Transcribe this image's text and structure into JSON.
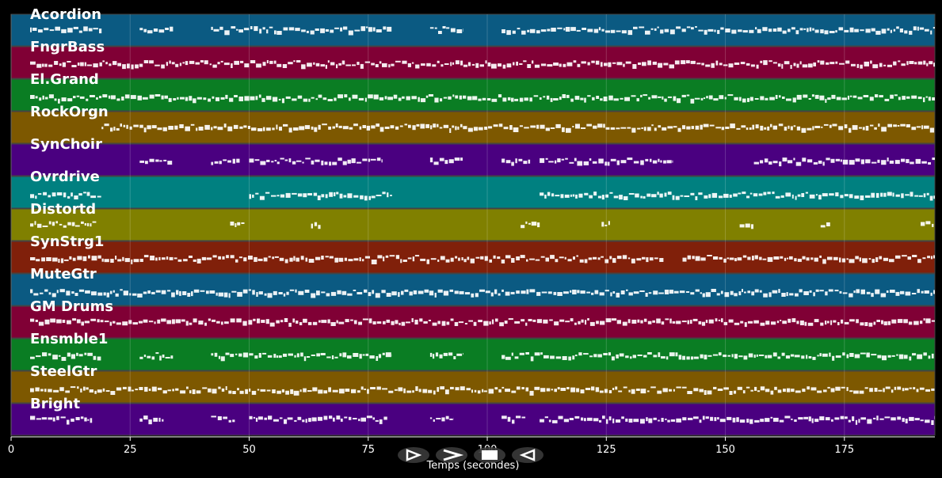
{
  "chart_data": {
    "type": "piano-roll",
    "xlabel": "Temps (secondes)",
    "xlim": [
      0,
      194
    ],
    "x_ticks": [
      "0",
      "25",
      "50",
      "75",
      "100",
      "125",
      "150",
      "175"
    ],
    "tracks": [
      {
        "name": "Acordion",
        "color": "#0b5a82",
        "segments": [
          [
            4,
            19
          ],
          [
            27,
            34
          ],
          [
            42,
            80
          ],
          [
            88,
            95
          ],
          [
            103,
            194
          ]
        ]
      },
      {
        "name": "FngrBass",
        "color": "#800035",
        "segments": [
          [
            4,
            194
          ]
        ]
      },
      {
        "name": "El.Grand",
        "color": "#0a7d23",
        "segments": [
          [
            4,
            194
          ]
        ]
      },
      {
        "name": "RockOrgn",
        "color": "#7d5800",
        "segments": [
          [
            19,
            194
          ]
        ]
      },
      {
        "name": "SynChoir",
        "color": "#4a0080",
        "segments": [
          [
            27,
            34
          ],
          [
            42,
            48
          ],
          [
            50,
            78
          ],
          [
            88,
            95
          ],
          [
            103,
            109
          ],
          [
            111,
            139
          ],
          [
            156,
            194
          ]
        ]
      },
      {
        "name": "Ovrdrive",
        "color": "#008080",
        "segments": [
          [
            4,
            19
          ],
          [
            50,
            80
          ],
          [
            111,
            194
          ]
        ]
      },
      {
        "name": "Distortd",
        "color": "#808000",
        "segments": [
          [
            4,
            18
          ],
          [
            46,
            49
          ],
          [
            63,
            65
          ],
          [
            107,
            111
          ],
          [
            124,
            126
          ],
          [
            153,
            156
          ],
          [
            170,
            172
          ],
          [
            191,
            194
          ]
        ]
      },
      {
        "name": "SynStrg1",
        "color": "#80200a",
        "segments": [
          [
            4,
            137
          ],
          [
            141,
            194
          ]
        ]
      },
      {
        "name": "MuteGtr",
        "color": "#0b5a82",
        "segments": [
          [
            4,
            194
          ]
        ]
      },
      {
        "name": "GM Drums",
        "color": "#800035",
        "segments": [
          [
            4,
            194
          ]
        ]
      },
      {
        "name": "Ensmble1",
        "color": "#0a7d23",
        "segments": [
          [
            4,
            19
          ],
          [
            27,
            34
          ],
          [
            42,
            80
          ],
          [
            88,
            95
          ],
          [
            103,
            194
          ]
        ]
      },
      {
        "name": "SteelGtr",
        "color": "#7d5800",
        "segments": [
          [
            4,
            194
          ]
        ]
      },
      {
        "name": "Bright",
        "color": "#4a0080",
        "segments": [
          [
            4,
            17
          ],
          [
            27,
            32
          ],
          [
            42,
            47
          ],
          [
            50,
            79
          ],
          [
            88,
            93
          ],
          [
            103,
            108
          ],
          [
            111,
            194
          ]
        ]
      }
    ]
  },
  "controls": [
    {
      "name": "play-icon",
      "glyph": "play"
    },
    {
      "name": "fast-forward-icon",
      "glyph": "forward"
    },
    {
      "name": "stop-icon",
      "glyph": "stop"
    },
    {
      "name": "rewind-icon",
      "glyph": "back"
    }
  ]
}
